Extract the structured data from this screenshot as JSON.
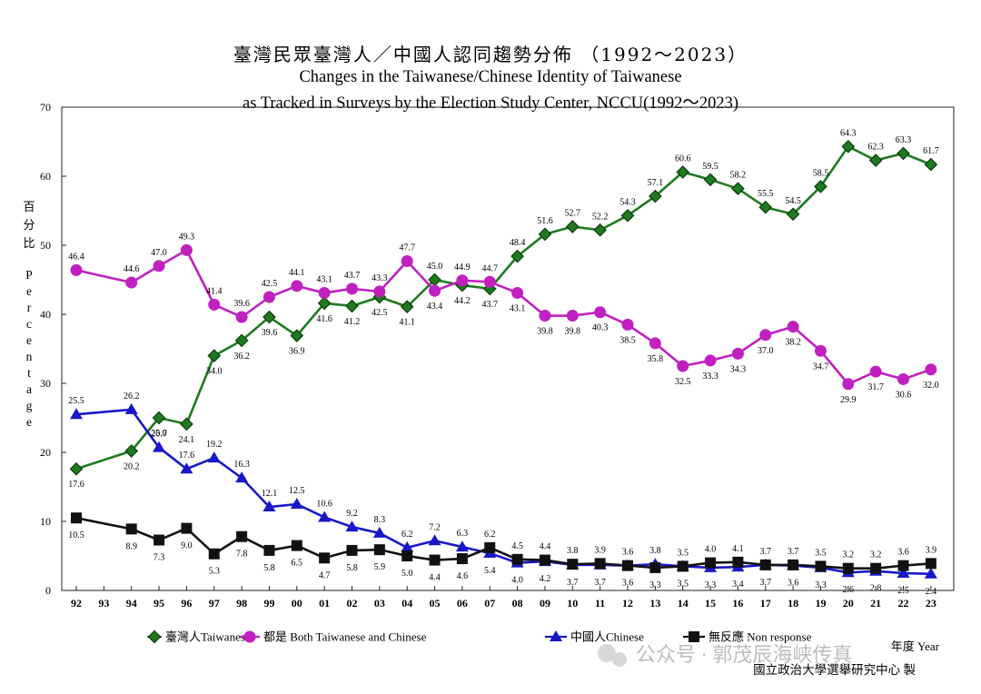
{
  "titles": {
    "line1": "臺灣民眾臺灣人／中國人認同趨勢分佈 （1992～2023）",
    "line2": "Changes in the Taiwanese/Chinese Identity of Taiwanese",
    "line3": "as Tracked in Surveys by the Election Study Center, NCCU(1992～2023)"
  },
  "ylabel_zh": "百分比",
  "ylabel_en": "Percentage",
  "xlabel": "年度 Year",
  "source": "國立政治大學選舉研究中心 製",
  "watermark": "公众号 · 郭茂辰海峡传真",
  "colors": {
    "taiwanese": "#1e7a1e",
    "both": "#c020c0",
    "chinese": "#1818c8",
    "nonresponse": "#111111"
  },
  "chart_data": {
    "type": "line",
    "ylim": [
      0,
      70
    ],
    "yticks": [
      "0",
      "10",
      "20",
      "30",
      "40",
      "50",
      "60",
      "70"
    ],
    "xticks": [
      "92",
      "93",
      "94",
      "95",
      "96",
      "97",
      "98",
      "99",
      "00",
      "01",
      "02",
      "03",
      "04",
      "05",
      "06",
      "07",
      "08",
      "09",
      "10",
      "11",
      "12",
      "13",
      "14",
      "15",
      "16",
      "17",
      "18",
      "19",
      "20",
      "21",
      "22",
      "23"
    ],
    "series": [
      {
        "key": "taiwanese",
        "name": "臺灣人Taiwanese",
        "marker": "diamond",
        "x": [
          "92",
          "94",
          "95",
          "96",
          "97",
          "98",
          "99",
          "00",
          "01",
          "02",
          "03",
          "04",
          "05",
          "06",
          "07",
          "08",
          "09",
          "10",
          "11",
          "12",
          "13",
          "14",
          "15",
          "16",
          "17",
          "18",
          "19",
          "20",
          "21",
          "22",
          "23"
        ],
        "values": [
          17.6,
          20.2,
          25.0,
          24.1,
          34.0,
          36.2,
          39.6,
          36.9,
          41.6,
          41.2,
          42.5,
          41.1,
          45.0,
          44.2,
          43.7,
          48.4,
          51.6,
          52.7,
          52.2,
          54.3,
          57.1,
          60.6,
          59.5,
          58.2,
          55.5,
          54.5,
          58.5,
          64.3,
          62.3,
          63.3,
          61.7
        ],
        "labels": [
          "17.6",
          "20.2",
          "25.0",
          "24.1",
          "34.0",
          "36.2",
          "39.6",
          "36.9",
          "41.6",
          "41.2",
          "42.5",
          "41.1",
          "45.0",
          "44.2",
          "43.7",
          "48.4",
          "51.6",
          "52.7",
          "52.2",
          "54.3",
          "57.1",
          "60.6",
          "59.5",
          "58.2",
          "55.5",
          "54.5",
          "58.5",
          "64.3",
          "62.3",
          "63.3",
          "61.7"
        ]
      },
      {
        "key": "both",
        "name": "都是 Both Taiwanese and Chinese",
        "marker": "circle",
        "x": [
          "92",
          "94",
          "95",
          "96",
          "97",
          "98",
          "99",
          "00",
          "01",
          "02",
          "03",
          "04",
          "05",
          "06",
          "07",
          "08",
          "09",
          "10",
          "11",
          "12",
          "13",
          "14",
          "15",
          "16",
          "17",
          "18",
          "19",
          "20",
          "21",
          "22",
          "23"
        ],
        "values": [
          46.4,
          44.6,
          47.0,
          49.3,
          41.4,
          39.6,
          42.5,
          44.1,
          43.1,
          43.7,
          43.3,
          47.7,
          43.4,
          44.9,
          44.7,
          43.1,
          39.8,
          39.8,
          40.3,
          38.5,
          35.8,
          32.5,
          33.3,
          34.3,
          37.0,
          38.2,
          34.7,
          29.9,
          31.7,
          30.6,
          32.0
        ],
        "labels": [
          "46.4",
          "44.6",
          "47.0",
          "49.3",
          "41.4",
          "39.6",
          "42.5",
          "44.1",
          "43.1",
          "43.7",
          "43.3",
          "47.7",
          "43.4",
          "44.9",
          "44.7",
          "43.1",
          "39.8",
          "39.8",
          "40.3",
          "38.5",
          "35.8",
          "32.5",
          "33.3",
          "34.3",
          "37.0",
          "38.2",
          "34.7",
          "29.9",
          "31.7",
          "30.6",
          "32.0"
        ]
      },
      {
        "key": "chinese",
        "name": "中國人Chinese",
        "marker": "triangle",
        "x": [
          "92",
          "94",
          "95",
          "96",
          "97",
          "98",
          "99",
          "00",
          "01",
          "02",
          "03",
          "04",
          "05",
          "06",
          "07",
          "08",
          "09",
          "10",
          "11",
          "12",
          "13",
          "14",
          "15",
          "16",
          "17",
          "18",
          "19",
          "20",
          "21",
          "22",
          "23"
        ],
        "values": [
          25.5,
          26.2,
          20.7,
          17.6,
          19.2,
          16.3,
          12.1,
          12.5,
          10.6,
          9.2,
          8.3,
          6.2,
          7.2,
          6.3,
          5.4,
          4.0,
          4.2,
          3.7,
          3.7,
          3.6,
          3.8,
          3.5,
          3.3,
          3.4,
          3.7,
          3.6,
          3.3,
          2.6,
          2.8,
          2.5,
          2.4
        ],
        "labels": [
          "25.5",
          "26.2",
          "20.7",
          "17.6",
          "19.2",
          "16.3",
          "12.1",
          "12.5",
          "10.6",
          "9.2",
          "8.3",
          "6.2",
          "7.2",
          "6.3",
          "5.4",
          "4.0",
          "4.2",
          "3.7",
          "3.7",
          "3.6",
          "3.8",
          "3.5",
          "3.3",
          "3.4",
          "3.7",
          "3.6",
          "3.3",
          "2.6",
          "2.8",
          "2.5",
          "2.4"
        ]
      },
      {
        "key": "nonresponse",
        "name": "無反應 Non response",
        "marker": "square",
        "x": [
          "92",
          "94",
          "95",
          "96",
          "97",
          "98",
          "99",
          "00",
          "01",
          "02",
          "03",
          "04",
          "05",
          "06",
          "07",
          "08",
          "09",
          "10",
          "11",
          "12",
          "13",
          "14",
          "15",
          "16",
          "17",
          "18",
          "19",
          "20",
          "21",
          "22",
          "23"
        ],
        "values": [
          10.5,
          8.9,
          7.3,
          9.0,
          5.3,
          7.8,
          5.8,
          6.5,
          4.7,
          5.8,
          5.9,
          5.0,
          4.4,
          4.6,
          6.2,
          4.5,
          4.4,
          3.8,
          3.9,
          3.6,
          3.3,
          3.5,
          4.0,
          4.1,
          3.7,
          3.7,
          3.5,
          3.2,
          3.2,
          3.6,
          3.9
        ],
        "labels": [
          "10.5",
          "8.9",
          "7.3",
          "9.0",
          "5.3",
          "7.8",
          "5.8",
          "6.5",
          "4.7",
          "5.8",
          "5.9",
          "5.0",
          "4.4",
          "4.6",
          "6.2",
          "4.5",
          "4.4",
          "3.8",
          "3.9",
          "3.6",
          "3.3",
          "3.5",
          "4.0",
          "4.1",
          "3.7",
          "3.7",
          "3.5",
          "3.2",
          "3.2",
          "3.6",
          "3.9"
        ]
      }
    ],
    "legend_position": "bottom"
  }
}
